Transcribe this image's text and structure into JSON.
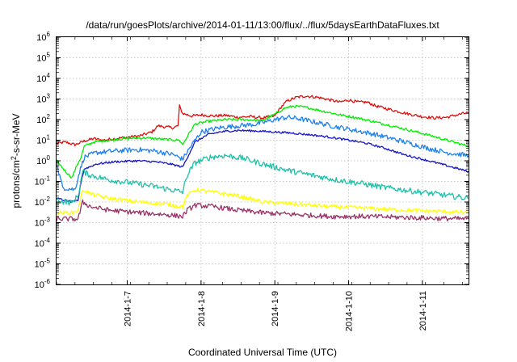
{
  "chart_data": {
    "type": "line",
    "title": "/data/run/goesPlots/archive/2014-01-11/13:00/flux/../flux/5daysEarthDataFluxes.txt",
    "xlabel": "Coordinated Universal Time (UTC)",
    "ylabel": "protons/cm2-s-sr-MeV",
    "ylabel_parts": [
      "protons/cm",
      "2",
      "-s-sr-MeV"
    ],
    "y_scale": "log",
    "ylim": [
      1e-06,
      1000000.0
    ],
    "y_ticks": [
      {
        "exp": "-6",
        "value": 1e-06
      },
      {
        "exp": "-5",
        "value": 1e-05
      },
      {
        "exp": "-4",
        "value": 0.0001
      },
      {
        "exp": "-3",
        "value": 0.001
      },
      {
        "exp": "-2",
        "value": 0.01
      },
      {
        "exp": "-1",
        "value": 0.1
      },
      {
        "exp": "0",
        "value": 1
      },
      {
        "exp": "1",
        "value": 10
      },
      {
        "exp": "2",
        "value": 100
      },
      {
        "exp": "3",
        "value": 1000
      },
      {
        "exp": "4",
        "value": 10000
      },
      {
        "exp": "5",
        "value": 100000
      },
      {
        "exp": "6",
        "value": 1000000
      }
    ],
    "y_tick_base": "10",
    "xlim": [
      "2014-01-06T01:00",
      "2014-01-11T15:00"
    ],
    "x_ticks": [
      "2014-1-7",
      "2014-1-8",
      "2014-1-9",
      "2014-1-10",
      "2014-1-11"
    ],
    "x_tick_dates": [
      "2014-01-07T00:00",
      "2014-01-08T00:00",
      "2014-01-09T00:00",
      "2014-01-10T00:00",
      "2014-01-11T00:00"
    ],
    "grid": true,
    "legend": "none",
    "series": [
      {
        "color": "#dd1010",
        "noise": 0.07,
        "points": [
          [
            "2014-01-06T01:00",
            7
          ],
          [
            "2014-01-06T04:00",
            8
          ],
          [
            "2014-01-06T07:00",
            6
          ],
          [
            "2014-01-06T10:00",
            9
          ],
          [
            "2014-01-06T13:00",
            12
          ],
          [
            "2014-01-06T16:00",
            10
          ],
          [
            "2014-01-06T20:00",
            12
          ],
          [
            "2014-01-07T00:00",
            14
          ],
          [
            "2014-01-07T04:00",
            16
          ],
          [
            "2014-01-07T08:00",
            25
          ],
          [
            "2014-01-07T10:00",
            50
          ],
          [
            "2014-01-07T12:00",
            45
          ],
          [
            "2014-01-07T15:00",
            40
          ],
          [
            "2014-01-07T16:30",
            50
          ],
          [
            "2014-01-07T17:00",
            450
          ],
          [
            "2014-01-07T18:00",
            200
          ],
          [
            "2014-01-07T21:00",
            150
          ],
          [
            "2014-01-08T00:00",
            170
          ],
          [
            "2014-01-08T04:00",
            150
          ],
          [
            "2014-01-08T08:00",
            160
          ],
          [
            "2014-01-08T12:00",
            130
          ],
          [
            "2014-01-08T16:00",
            140
          ],
          [
            "2014-01-08T20:00",
            120
          ],
          [
            "2014-01-09T00:00",
            150
          ],
          [
            "2014-01-09T02:00",
            400
          ],
          [
            "2014-01-09T04:00",
            800
          ],
          [
            "2014-01-09T07:00",
            1200
          ],
          [
            "2014-01-09T10:00",
            1400
          ],
          [
            "2014-01-09T14:00",
            1200
          ],
          [
            "2014-01-09T18:00",
            900
          ],
          [
            "2014-01-09T21:00",
            700
          ],
          [
            "2014-01-10T00:00",
            900
          ],
          [
            "2014-01-10T03:00",
            700
          ],
          [
            "2014-01-10T06:00",
            700
          ],
          [
            "2014-01-10T09:00",
            450
          ],
          [
            "2014-01-10T12:00",
            350
          ],
          [
            "2014-01-10T16:00",
            250
          ],
          [
            "2014-01-10T20:00",
            180
          ],
          [
            "2014-01-11T00:00",
            140
          ],
          [
            "2014-01-11T04:00",
            120
          ],
          [
            "2014-01-11T08:00",
            130
          ],
          [
            "2014-01-11T12:00",
            180
          ],
          [
            "2014-01-11T15:00",
            220
          ]
        ]
      },
      {
        "color": "#00ee00",
        "noise": 0.06,
        "points": [
          [
            "2014-01-06T01:00",
            1
          ],
          [
            "2014-01-06T04:00",
            0.3
          ],
          [
            "2014-01-06T06:00",
            0.15
          ],
          [
            "2014-01-06T08:00",
            0.8
          ],
          [
            "2014-01-06T09:00",
            1.5
          ],
          [
            "2014-01-06T10:00",
            5
          ],
          [
            "2014-01-06T13:00",
            8
          ],
          [
            "2014-01-06T18:00",
            10
          ],
          [
            "2014-01-07T00:00",
            12
          ],
          [
            "2014-01-07T06:00",
            13
          ],
          [
            "2014-01-07T12:00",
            11
          ],
          [
            "2014-01-07T17:00",
            10
          ],
          [
            "2014-01-07T18:00",
            6
          ],
          [
            "2014-01-07T20:00",
            20
          ],
          [
            "2014-01-07T22:00",
            60
          ],
          [
            "2014-01-08T02:00",
            80
          ],
          [
            "2014-01-08T08:00",
            100
          ],
          [
            "2014-01-08T14:00",
            100
          ],
          [
            "2014-01-08T20:00",
            90
          ],
          [
            "2014-01-09T00:00",
            180
          ],
          [
            "2014-01-09T03:00",
            350
          ],
          [
            "2014-01-09T06:00",
            450
          ],
          [
            "2014-01-09T10:00",
            400
          ],
          [
            "2014-01-09T16:00",
            250
          ],
          [
            "2014-01-09T22:00",
            160
          ],
          [
            "2014-01-10T03:00",
            120
          ],
          [
            "2014-01-10T08:00",
            80
          ],
          [
            "2014-01-10T14:00",
            50
          ],
          [
            "2014-01-10T20:00",
            30
          ],
          [
            "2014-01-11T02:00",
            18
          ],
          [
            "2014-01-11T08:00",
            10
          ],
          [
            "2014-01-11T15:00",
            5
          ]
        ]
      },
      {
        "color": "#1e82ee",
        "noise": 0.12,
        "points": [
          [
            "2014-01-06T01:00",
            0.7
          ],
          [
            "2014-01-06T03:00",
            0.05
          ],
          [
            "2014-01-06T07:00",
            0.04
          ],
          [
            "2014-01-06T08:30",
            0.3
          ],
          [
            "2014-01-06T10:00",
            1.5
          ],
          [
            "2014-01-06T14:00",
            2.5
          ],
          [
            "2014-01-06T20:00",
            3
          ],
          [
            "2014-01-07T03:00",
            3.5
          ],
          [
            "2014-01-07T09:00",
            3
          ],
          [
            "2014-01-07T15:00",
            2
          ],
          [
            "2014-01-07T18:00",
            1.2
          ],
          [
            "2014-01-07T21:00",
            6
          ],
          [
            "2014-01-08T00:00",
            25
          ],
          [
            "2014-01-08T06:00",
            40
          ],
          [
            "2014-01-08T12:00",
            50
          ],
          [
            "2014-01-08T18:00",
            60
          ],
          [
            "2014-01-09T00:00",
            100
          ],
          [
            "2014-01-09T04:00",
            130
          ],
          [
            "2014-01-09T08:00",
            110
          ],
          [
            "2014-01-09T14:00",
            70
          ],
          [
            "2014-01-09T20:00",
            45
          ],
          [
            "2014-01-10T02:00",
            30
          ],
          [
            "2014-01-10T08:00",
            20
          ],
          [
            "2014-01-10T14:00",
            12
          ],
          [
            "2014-01-10T20:00",
            7
          ],
          [
            "2014-01-11T02:00",
            4
          ],
          [
            "2014-01-11T08:00",
            2.5
          ],
          [
            "2014-01-11T15:00",
            1.8
          ]
        ]
      },
      {
        "color": "#1414cc",
        "noise": 0.05,
        "points": [
          [
            "2014-01-06T01:00",
            0.015
          ],
          [
            "2014-01-06T06:00",
            0.01
          ],
          [
            "2014-01-06T08:00",
            0.012
          ],
          [
            "2014-01-06T09:00",
            0.1
          ],
          [
            "2014-01-06T10:00",
            0.4
          ],
          [
            "2014-01-06T14:00",
            0.7
          ],
          [
            "2014-01-06T20:00",
            0.9
          ],
          [
            "2014-01-07T03:00",
            1
          ],
          [
            "2014-01-07T09:00",
            0.9
          ],
          [
            "2014-01-07T14:00",
            0.7
          ],
          [
            "2014-01-07T18:00",
            0.5
          ],
          [
            "2014-01-07T20:00",
            2
          ],
          [
            "2014-01-07T22:00",
            8
          ],
          [
            "2014-01-08T02:00",
            18
          ],
          [
            "2014-01-08T06:00",
            25
          ],
          [
            "2014-01-08T12:00",
            30
          ],
          [
            "2014-01-08T18:00",
            28
          ],
          [
            "2014-01-09T00:00",
            25
          ],
          [
            "2014-01-09T06:00",
            22
          ],
          [
            "2014-01-09T12:00",
            18
          ],
          [
            "2014-01-09T18:00",
            14
          ],
          [
            "2014-01-10T00:00",
            10
          ],
          [
            "2014-01-10T06:00",
            7
          ],
          [
            "2014-01-10T12:00",
            4
          ],
          [
            "2014-01-10T18:00",
            2
          ],
          [
            "2014-01-11T00:00",
            1.2
          ],
          [
            "2014-01-11T06:00",
            0.7
          ],
          [
            "2014-01-11T15:00",
            0.3
          ]
        ]
      },
      {
        "color": "#20c0a8",
        "noise": 0.14,
        "points": [
          [
            "2014-01-06T01:00",
            0.012
          ],
          [
            "2014-01-06T06:00",
            0.009
          ],
          [
            "2014-01-06T08:00",
            0.02
          ],
          [
            "2014-01-06T09:30",
            0.3
          ],
          [
            "2014-01-06T12:00",
            0.2
          ],
          [
            "2014-01-06T18:00",
            0.12
          ],
          [
            "2014-01-07T00:00",
            0.09
          ],
          [
            "2014-01-07T08:00",
            0.06
          ],
          [
            "2014-01-07T14:00",
            0.04
          ],
          [
            "2014-01-07T18:00",
            0.03
          ],
          [
            "2014-01-07T19:30",
            0.2
          ],
          [
            "2014-01-07T22:00",
            0.8
          ],
          [
            "2014-01-08T03:00",
            1.5
          ],
          [
            "2014-01-08T08:00",
            1.8
          ],
          [
            "2014-01-08T14:00",
            1.3
          ],
          [
            "2014-01-08T20:00",
            0.7
          ],
          [
            "2014-01-09T04:00",
            0.35
          ],
          [
            "2014-01-09T12:00",
            0.2
          ],
          [
            "2014-01-09T20:00",
            0.12
          ],
          [
            "2014-01-10T04:00",
            0.08
          ],
          [
            "2014-01-10T12:00",
            0.05
          ],
          [
            "2014-01-10T20:00",
            0.035
          ],
          [
            "2014-01-11T04:00",
            0.025
          ],
          [
            "2014-01-11T15:00",
            0.015
          ]
        ]
      },
      {
        "color": "#ffff00",
        "noise": 0.1,
        "points": [
          [
            "2014-01-06T01:00",
            0.003
          ],
          [
            "2014-01-06T06:00",
            0.003
          ],
          [
            "2014-01-06T08:00",
            0.004
          ],
          [
            "2014-01-06T09:30",
            0.04
          ],
          [
            "2014-01-06T12:00",
            0.025
          ],
          [
            "2014-01-06T18:00",
            0.015
          ],
          [
            "2014-01-07T04:00",
            0.01
          ],
          [
            "2014-01-07T12:00",
            0.008
          ],
          [
            "2014-01-07T18:00",
            0.006
          ],
          [
            "2014-01-07T19:30",
            0.02
          ],
          [
            "2014-01-07T22:00",
            0.04
          ],
          [
            "2014-01-08T04:00",
            0.03
          ],
          [
            "2014-01-08T12:00",
            0.02
          ],
          [
            "2014-01-08T20:00",
            0.01
          ],
          [
            "2014-01-09T06:00",
            0.008
          ],
          [
            "2014-01-09T18:00",
            0.006
          ],
          [
            "2014-01-10T06:00",
            0.005
          ],
          [
            "2014-01-10T18:00",
            0.004
          ],
          [
            "2014-01-11T06:00",
            0.0035
          ],
          [
            "2014-01-11T15:00",
            0.003
          ]
        ]
      },
      {
        "color": "#993366",
        "noise": 0.12,
        "points": [
          [
            "2014-01-06T01:00",
            0.0015
          ],
          [
            "2014-01-06T06:00",
            0.0015
          ],
          [
            "2014-01-06T08:00",
            0.0015
          ],
          [
            "2014-01-06T09:30",
            0.01
          ],
          [
            "2014-01-06T12:00",
            0.006
          ],
          [
            "2014-01-06T18:00",
            0.004
          ],
          [
            "2014-01-07T04:00",
            0.003
          ],
          [
            "2014-01-07T12:00",
            0.0025
          ],
          [
            "2014-01-07T18:00",
            0.002
          ],
          [
            "2014-01-07T19:30",
            0.004
          ],
          [
            "2014-01-07T22:00",
            0.007
          ],
          [
            "2014-01-08T04:00",
            0.006
          ],
          [
            "2014-01-08T12:00",
            0.004
          ],
          [
            "2014-01-08T20:00",
            0.003
          ],
          [
            "2014-01-09T06:00",
            0.0025
          ],
          [
            "2014-01-09T18:00",
            0.002
          ],
          [
            "2014-01-10T06:00",
            0.002
          ],
          [
            "2014-01-10T18:00",
            0.0018
          ],
          [
            "2014-01-11T06:00",
            0.0016
          ],
          [
            "2014-01-11T15:00",
            0.0015
          ]
        ]
      }
    ]
  }
}
